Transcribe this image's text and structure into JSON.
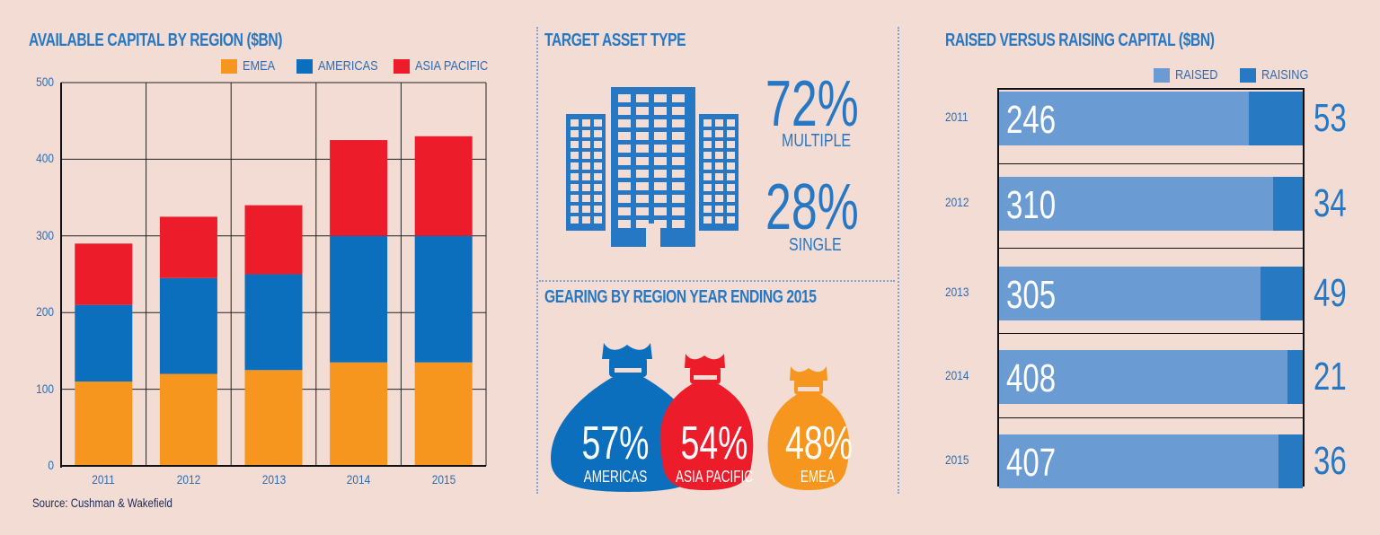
{
  "panels": {
    "left_title": "AVAILABLE CAPITAL BY REGION ($BN)",
    "middle_title": "TARGET ASSET TYPE",
    "gearing_title": "GEARING BY REGION YEAR ENDING 2015",
    "right_title": "RAISED VERSUS RAISING CAPITAL ($BN)",
    "source": "Source: Cushman & Wakefield"
  },
  "colors": {
    "emea": "#f6961e",
    "americas": "#0b6fbe",
    "asia_pacific": "#ec1c2b",
    "raised": "#6a9bd3",
    "raising": "#2779c2",
    "text_blue": "#2677c4"
  },
  "chart_data": [
    {
      "type": "bar",
      "stacked": true,
      "title": "AVAILABLE CAPITAL BY REGION ($BN)",
      "categories": [
        "2011",
        "2012",
        "2013",
        "2014",
        "2015"
      ],
      "series": [
        {
          "name": "EMEA",
          "values": [
            110,
            120,
            125,
            135,
            135
          ]
        },
        {
          "name": "AMERICAS",
          "values": [
            100,
            125,
            125,
            165,
            165
          ]
        },
        {
          "name": "ASIA PACIFIC",
          "values": [
            80,
            80,
            90,
            125,
            130
          ]
        }
      ],
      "ylim": [
        0,
        500
      ],
      "yticks": [
        "0",
        "100",
        "200",
        "300",
        "400",
        "500"
      ],
      "grid": true,
      "legend": "top-right"
    },
    {
      "type": "bar",
      "stacked": true,
      "orientation": "horizontal",
      "title": "RAISED VERSUS RAISING CAPITAL ($BN)",
      "categories": [
        "2011",
        "2012",
        "2013",
        "2014",
        "2015"
      ],
      "series": [
        {
          "name": "RAISED",
          "values": [
            246,
            310,
            305,
            408,
            407
          ]
        },
        {
          "name": "RAISING",
          "values": [
            53,
            34,
            49,
            21,
            36
          ]
        }
      ],
      "legend": "top-right"
    }
  ],
  "asset_type": [
    {
      "pct": "72%",
      "label": "MULTIPLE"
    },
    {
      "pct": "28%",
      "label": "SINGLE"
    }
  ],
  "gearing": [
    {
      "pct": "57%",
      "label": "AMERICAS"
    },
    {
      "pct": "54%",
      "label": "ASIA PACIFIC"
    },
    {
      "pct": "48%",
      "label": "EMEA"
    }
  ]
}
